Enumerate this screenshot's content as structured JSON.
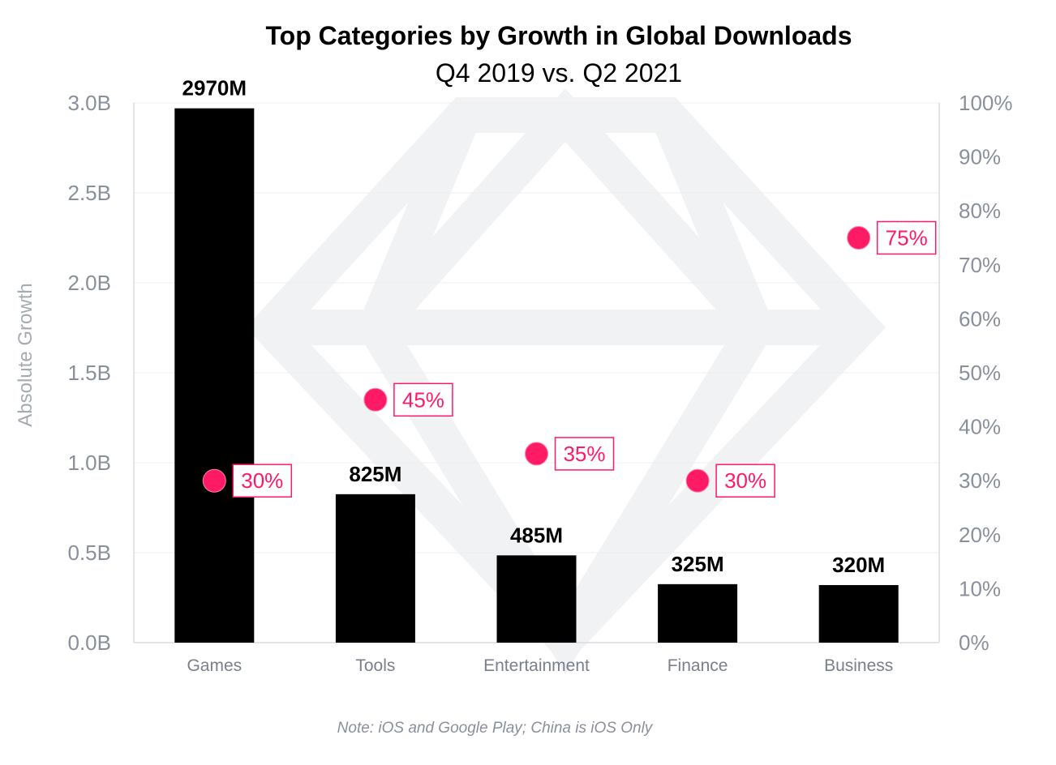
{
  "chart_data": {
    "type": "bar",
    "title": "Top Categories by Growth in Global Downloads",
    "subtitle": "Q4 2019 vs. Q2 2021",
    "ylabel": "Absolute Growth",
    "categories": [
      "Games",
      "Tools",
      "Entertainment",
      "Finance",
      "Business"
    ],
    "series": [
      {
        "values": [
          2970,
          825,
          485,
          325,
          320
        ],
        "labels": [
          "2970M",
          "825M",
          "485M",
          "325M",
          "320M"
        ],
        "color": "#000000",
        "axis": "left"
      },
      {
        "values": [
          30,
          45,
          35,
          30,
          75
        ],
        "labels": [
          "30%",
          "45%",
          "35%",
          "30%",
          "75%"
        ],
        "color": "#ff1a66",
        "mark": "point",
        "axis": "right"
      }
    ],
    "ylim": [
      0,
      3000
    ],
    "y2lim": [
      0,
      100
    ],
    "left_ticks": [
      "0.0B",
      "0.5B",
      "1.0B",
      "1.5B",
      "2.0B",
      "2.5B",
      "3.0B"
    ],
    "right_ticks": [
      "0%",
      "10%",
      "20%",
      "30%",
      "40%",
      "50%",
      "60%",
      "70%",
      "80%",
      "90%",
      "100%"
    ],
    "grid": true,
    "note": "Note: iOS and Google Play; China is iOS Only"
  }
}
